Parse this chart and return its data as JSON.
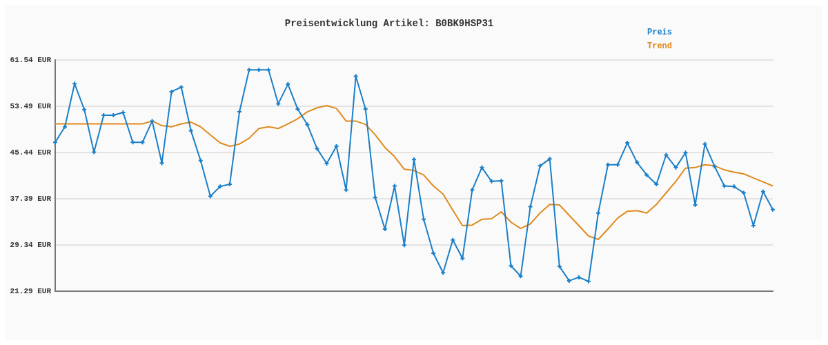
{
  "chart_data": {
    "type": "line",
    "title": "Preisentwicklung Artikel: B0BK9HSP31",
    "categories": [
      null,
      null,
      null,
      null,
      null,
      null,
      null,
      null,
      null,
      null,
      null,
      null,
      null,
      null,
      null,
      null,
      null,
      null,
      null,
      null,
      null,
      null,
      null,
      null,
      null,
      null,
      null,
      null,
      null,
      null,
      null,
      null,
      null,
      null,
      null,
      null,
      null,
      null,
      null,
      null,
      null,
      null,
      null,
      null,
      null,
      null,
      null,
      null,
      null,
      null,
      null,
      null,
      null,
      null,
      null,
      null,
      null,
      null,
      null,
      null,
      null,
      null,
      null,
      null,
      null,
      null,
      null,
      null,
      null,
      null,
      null,
      null,
      null,
      null,
      null
    ],
    "series": [
      {
        "name": "Preis",
        "color": "#1a7fc8",
        "marker": "cross",
        "values": [
          47.2,
          49.9,
          57.4,
          52.9,
          45.5,
          51.9,
          51.9,
          52.4,
          47.2,
          47.2,
          50.9,
          43.6,
          56.0,
          56.8,
          49.2,
          44.0,
          37.8,
          39.5,
          39.9,
          52.5,
          59.8,
          59.8,
          59.8,
          53.9,
          57.3,
          53.0,
          50.3,
          46.1,
          43.5,
          46.5,
          38.9,
          58.7,
          53.0,
          37.6,
          32.1,
          39.6,
          29.3,
          44.2,
          33.8,
          27.9,
          24.5,
          30.2,
          27.0,
          38.9,
          42.8,
          40.4,
          40.5,
          25.7,
          23.9,
          36.0,
          43.1,
          44.3,
          25.6,
          23.1,
          23.7,
          23.0,
          34.9,
          43.3,
          43.3,
          47.1,
          43.7,
          41.5,
          39.9,
          45.0,
          42.8,
          45.4,
          36.3,
          46.9,
          43.0,
          39.6,
          39.5,
          38.4,
          32.7,
          38.6,
          35.5
        ]
      },
      {
        "name": "Trend",
        "color": "#e08a1e",
        "marker": "none",
        "values": [
          50.4,
          50.4,
          50.4,
          50.4,
          50.4,
          50.4,
          50.4,
          50.4,
          50.4,
          50.4,
          50.9,
          50.1,
          49.9,
          50.4,
          50.7,
          49.9,
          48.5,
          47.1,
          46.5,
          46.9,
          47.9,
          49.6,
          49.9,
          49.6,
          50.4,
          51.3,
          52.5,
          53.2,
          53.6,
          53.1,
          50.9,
          50.9,
          50.3,
          48.5,
          46.3,
          44.7,
          42.5,
          42.3,
          41.5,
          39.6,
          38.2,
          35.4,
          32.7,
          32.8,
          33.8,
          33.9,
          35.1,
          33.3,
          32.2,
          33.0,
          34.9,
          36.4,
          36.3,
          34.5,
          32.7,
          30.9,
          30.3,
          32.1,
          34.0,
          35.2,
          35.3,
          34.9,
          36.4,
          38.4,
          40.4,
          42.7,
          42.8,
          43.3,
          43.1,
          42.4,
          42.0,
          41.7,
          41.0,
          40.3,
          39.6
        ]
      }
    ],
    "ylim": [
      21.29,
      61.54
    ],
    "yticks": [
      {
        "value": 21.29,
        "label": "21.29 EUR"
      },
      {
        "value": 29.34,
        "label": "29.34 EUR"
      },
      {
        "value": 37.39,
        "label": "37.39 EUR"
      },
      {
        "value": 45.44,
        "label": "45.44 EUR"
      },
      {
        "value": 53.49,
        "label": "53.49 EUR"
      },
      {
        "value": 61.54,
        "label": "61.54 EUR"
      }
    ],
    "grid": "y",
    "legend": "top right",
    "line_style": "solid",
    "tick_labels": "y"
  }
}
